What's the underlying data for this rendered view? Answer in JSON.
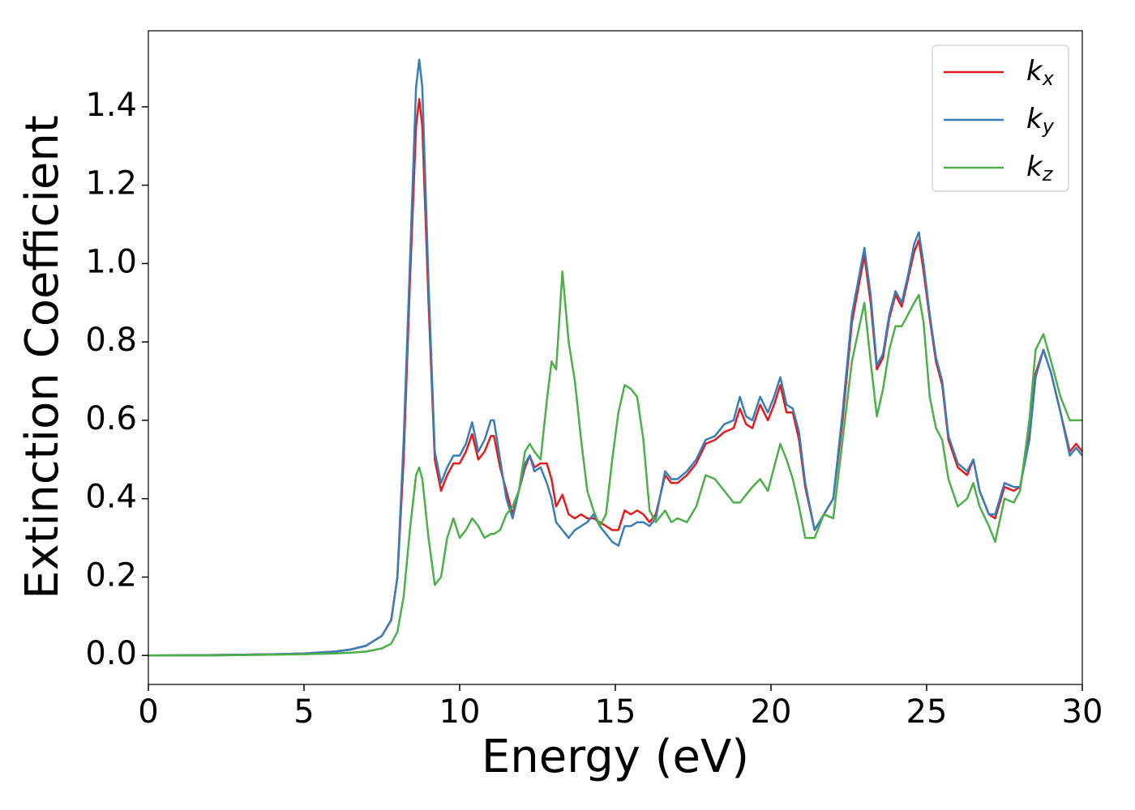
{
  "chart_data": {
    "type": "line",
    "xlabel": "Energy (eV)",
    "ylabel": "Extinction Coefficient",
    "x": [
      0,
      2,
      4,
      5,
      6,
      6.5,
      7,
      7.5,
      7.8,
      8.0,
      8.2,
      8.4,
      8.6,
      8.7,
      8.8,
      9.0,
      9.2,
      9.4,
      9.6,
      9.8,
      10.0,
      10.2,
      10.4,
      10.6,
      10.8,
      11.0,
      11.1,
      11.3,
      11.5,
      11.7,
      11.9,
      12.1,
      12.25,
      12.4,
      12.6,
      12.8,
      12.95,
      13.1,
      13.3,
      13.5,
      13.7,
      13.9,
      14.1,
      14.3,
      14.5,
      14.7,
      14.9,
      15.1,
      15.3,
      15.5,
      15.7,
      15.9,
      16.1,
      16.3,
      16.6,
      16.8,
      17.0,
      17.3,
      17.6,
      17.9,
      18.2,
      18.5,
      18.8,
      19.0,
      19.2,
      19.4,
      19.65,
      19.9,
      20.1,
      20.3,
      20.5,
      20.7,
      20.9,
      21.1,
      21.4,
      21.7,
      22.0,
      22.3,
      22.6,
      23.0,
      23.2,
      23.4,
      23.6,
      23.8,
      24.0,
      24.2,
      24.4,
      24.6,
      24.75,
      24.9,
      25.1,
      25.3,
      25.5,
      25.7,
      26.0,
      26.3,
      26.5,
      26.7,
      27.0,
      27.2,
      27.5,
      27.8,
      28.0,
      28.3,
      28.5,
      28.75,
      29.0,
      29.3,
      29.6,
      29.8,
      30.0
    ],
    "series": [
      {
        "name": "kx",
        "color": "#e41a1c",
        "values": [
          0,
          0.001,
          0.003,
          0.005,
          0.01,
          0.015,
          0.025,
          0.05,
          0.09,
          0.2,
          0.5,
          0.95,
          1.35,
          1.42,
          1.35,
          0.9,
          0.5,
          0.42,
          0.46,
          0.49,
          0.49,
          0.52,
          0.565,
          0.5,
          0.52,
          0.56,
          0.56,
          0.48,
          0.42,
          0.36,
          0.42,
          0.48,
          0.51,
          0.48,
          0.49,
          0.49,
          0.45,
          0.38,
          0.41,
          0.36,
          0.35,
          0.36,
          0.35,
          0.35,
          0.34,
          0.33,
          0.32,
          0.32,
          0.37,
          0.36,
          0.37,
          0.36,
          0.34,
          0.36,
          0.46,
          0.44,
          0.44,
          0.46,
          0.49,
          0.54,
          0.55,
          0.57,
          0.58,
          0.63,
          0.59,
          0.58,
          0.64,
          0.6,
          0.64,
          0.69,
          0.62,
          0.62,
          0.55,
          0.43,
          0.32,
          0.36,
          0.4,
          0.6,
          0.85,
          1.02,
          0.9,
          0.73,
          0.76,
          0.86,
          0.92,
          0.89,
          0.96,
          1.03,
          1.06,
          0.98,
          0.86,
          0.75,
          0.69,
          0.55,
          0.48,
          0.46,
          0.5,
          0.42,
          0.36,
          0.35,
          0.43,
          0.42,
          0.43,
          0.56,
          0.72,
          0.78,
          0.72,
          0.62,
          0.52,
          0.54,
          0.52
        ]
      },
      {
        "name": "ky",
        "color": "#377eb8",
        "values": [
          0,
          0.001,
          0.003,
          0.005,
          0.01,
          0.015,
          0.025,
          0.05,
          0.09,
          0.2,
          0.55,
          1.0,
          1.45,
          1.52,
          1.45,
          0.95,
          0.52,
          0.44,
          0.48,
          0.51,
          0.51,
          0.54,
          0.595,
          0.52,
          0.55,
          0.6,
          0.6,
          0.5,
          0.4,
          0.35,
          0.42,
          0.49,
          0.51,
          0.47,
          0.48,
          0.44,
          0.4,
          0.34,
          0.32,
          0.3,
          0.32,
          0.33,
          0.34,
          0.36,
          0.33,
          0.31,
          0.29,
          0.28,
          0.33,
          0.33,
          0.34,
          0.34,
          0.33,
          0.35,
          0.47,
          0.45,
          0.45,
          0.47,
          0.5,
          0.55,
          0.56,
          0.59,
          0.6,
          0.66,
          0.61,
          0.6,
          0.66,
          0.62,
          0.66,
          0.71,
          0.64,
          0.63,
          0.57,
          0.44,
          0.32,
          0.36,
          0.4,
          0.62,
          0.87,
          1.04,
          0.92,
          0.74,
          0.77,
          0.87,
          0.93,
          0.9,
          0.97,
          1.05,
          1.08,
          1.0,
          0.87,
          0.76,
          0.7,
          0.56,
          0.49,
          0.47,
          0.5,
          0.42,
          0.36,
          0.36,
          0.44,
          0.43,
          0.43,
          0.55,
          0.71,
          0.78,
          0.72,
          0.62,
          0.51,
          0.53,
          0.51
        ]
      },
      {
        "name": "kz",
        "color": "#4daf4a",
        "values": [
          0,
          0,
          0.002,
          0.003,
          0.005,
          0.007,
          0.01,
          0.018,
          0.03,
          0.06,
          0.15,
          0.32,
          0.46,
          0.48,
          0.45,
          0.3,
          0.18,
          0.2,
          0.3,
          0.35,
          0.3,
          0.32,
          0.35,
          0.33,
          0.3,
          0.31,
          0.31,
          0.32,
          0.36,
          0.38,
          0.42,
          0.52,
          0.54,
          0.52,
          0.5,
          0.65,
          0.75,
          0.73,
          0.98,
          0.8,
          0.7,
          0.55,
          0.42,
          0.37,
          0.33,
          0.36,
          0.5,
          0.62,
          0.69,
          0.68,
          0.66,
          0.55,
          0.37,
          0.34,
          0.37,
          0.34,
          0.35,
          0.34,
          0.38,
          0.46,
          0.45,
          0.42,
          0.39,
          0.39,
          0.41,
          0.43,
          0.45,
          0.42,
          0.48,
          0.54,
          0.5,
          0.45,
          0.38,
          0.3,
          0.3,
          0.36,
          0.35,
          0.55,
          0.75,
          0.9,
          0.75,
          0.61,
          0.68,
          0.78,
          0.84,
          0.84,
          0.87,
          0.9,
          0.92,
          0.85,
          0.66,
          0.58,
          0.55,
          0.45,
          0.38,
          0.4,
          0.44,
          0.38,
          0.33,
          0.29,
          0.4,
          0.39,
          0.42,
          0.6,
          0.78,
          0.82,
          0.75,
          0.66,
          0.6,
          0.6,
          0.6
        ]
      }
    ],
    "xlim": [
      0,
      30
    ],
    "xticks": [
      0,
      5,
      10,
      15,
      20,
      25,
      30
    ],
    "ylim": [
      -0.074,
      1.594
    ],
    "yticks": [
      {
        "value": 0,
        "label": "0.0"
      },
      0.2,
      0.4,
      0.6,
      0.8,
      {
        "value": 1,
        "label": "1.0"
      },
      1.2,
      1.4
    ],
    "legend": "upper right"
  }
}
